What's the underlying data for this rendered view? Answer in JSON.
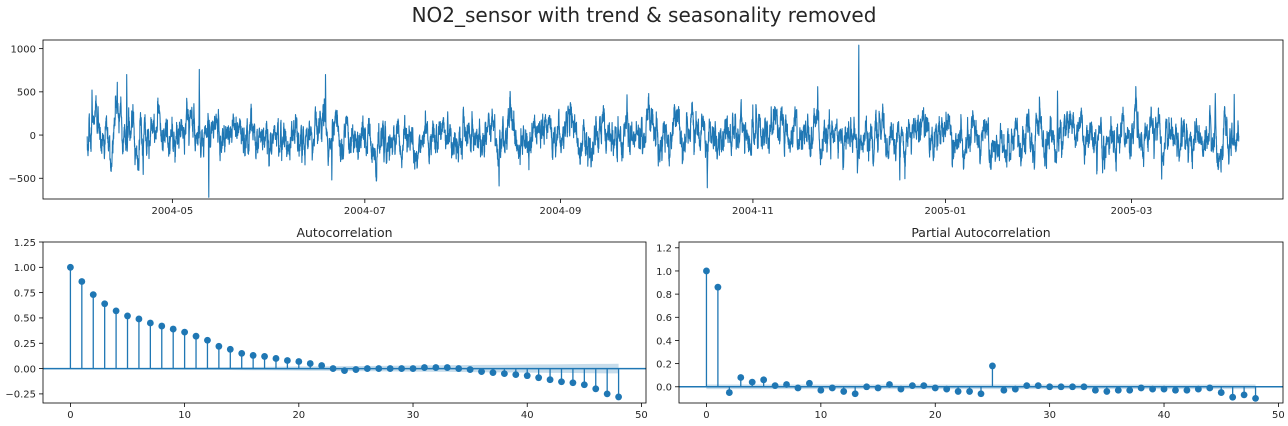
{
  "figure": {
    "suptitle": "NO2_sensor with trend & seasonality removed",
    "line_color": "#1f77b4",
    "conf_band_color": "#1f77b4"
  },
  "chart_data": [
    {
      "type": "line",
      "title": "",
      "xlabel": "",
      "ylabel": "",
      "x_range": [
        "2004-04-04",
        "2005-04-04"
      ],
      "xlim": [
        "2004-03-21",
        "2005-04-18"
      ],
      "ylim": [
        -740,
        1100
      ],
      "xticks": [
        {
          "date": "2004-05-01",
          "label": "2004-05"
        },
        {
          "date": "2004-07-01",
          "label": "2004-07"
        },
        {
          "date": "2004-09-01",
          "label": "2004-09"
        },
        {
          "date": "2004-11-01",
          "label": "2004-11"
        },
        {
          "date": "2005-01-01",
          "label": "2005-01"
        },
        {
          "date": "2005-03-01",
          "label": "2005-03"
        }
      ],
      "yticks": [
        -500,
        0,
        500,
        1000
      ],
      "ytick_labels": [
        "−500",
        "0",
        "500",
        "1000"
      ],
      "noise_sd": 145,
      "spikes": [
        {
          "date": "2004-04-05",
          "value": 520
        },
        {
          "date": "2004-04-13",
          "value": 610
        },
        {
          "date": "2004-04-16",
          "value": 700
        },
        {
          "date": "2004-05-09",
          "value": 760
        },
        {
          "date": "2004-05-12",
          "value": -720
        },
        {
          "date": "2004-06-18",
          "value": 700
        },
        {
          "date": "2004-06-20",
          "value": -520
        },
        {
          "date": "2004-08-12",
          "value": -590
        },
        {
          "date": "2004-10-17",
          "value": -610
        },
        {
          "date": "2004-11-21",
          "value": 560
        },
        {
          "date": "2004-12-04",
          "value": 1040
        },
        {
          "date": "2004-12-17",
          "value": -520
        },
        {
          "date": "2005-02-05",
          "value": 510
        },
        {
          "date": "2005-03-10",
          "value": -510
        },
        {
          "date": "2005-03-27",
          "value": 480
        },
        {
          "date": "2005-04-02",
          "value": 470
        }
      ],
      "grid": false
    },
    {
      "type": "stem",
      "title": "Autocorrelation",
      "xlabel": "",
      "ylabel": "",
      "xlim": [
        -2.4,
        50.4
      ],
      "ylim": [
        -0.34,
        1.25
      ],
      "xticks": [
        0,
        10,
        20,
        30,
        40,
        50
      ],
      "xtick_labels": [
        "0",
        "10",
        "20",
        "30",
        "40",
        "50"
      ],
      "yticks": [
        -0.25,
        0.0,
        0.25,
        0.5,
        0.75,
        1.0,
        1.25
      ],
      "ytick_labels": [
        "−0.25",
        "0.00",
        "0.25",
        "0.50",
        "0.75",
        "1.00",
        "1.25"
      ],
      "lags": [
        0,
        1,
        2,
        3,
        4,
        5,
        6,
        7,
        8,
        9,
        10,
        11,
        12,
        13,
        14,
        15,
        16,
        17,
        18,
        19,
        20,
        21,
        22,
        23,
        24,
        25,
        26,
        27,
        28,
        29,
        30,
        31,
        32,
        33,
        34,
        35,
        36,
        37,
        38,
        39,
        40,
        41,
        42,
        43,
        44,
        45,
        46,
        47,
        48
      ],
      "values": [
        1.0,
        0.86,
        0.73,
        0.64,
        0.57,
        0.52,
        0.49,
        0.45,
        0.42,
        0.39,
        0.36,
        0.32,
        0.28,
        0.22,
        0.19,
        0.15,
        0.13,
        0.12,
        0.1,
        0.08,
        0.07,
        0.05,
        0.03,
        0.0,
        -0.02,
        -0.01,
        0.0,
        0.0,
        0.0,
        0.0,
        0.0,
        0.01,
        0.01,
        0.01,
        0.0,
        -0.01,
        -0.03,
        -0.04,
        -0.05,
        -0.06,
        -0.07,
        -0.09,
        -0.11,
        -0.13,
        -0.14,
        -0.16,
        -0.2,
        -0.25,
        -0.28
      ],
      "conf_band": [
        0.0,
        0.001,
        0.002,
        0.003,
        0.004,
        0.005,
        0.006,
        0.007,
        0.008,
        0.009,
        0.01,
        0.011,
        0.012,
        0.013,
        0.014,
        0.015,
        0.016,
        0.017,
        0.018,
        0.019,
        0.02,
        0.021,
        0.022,
        0.023,
        0.024,
        0.025,
        0.026,
        0.027,
        0.028,
        0.029,
        0.03,
        0.031,
        0.032,
        0.033,
        0.034,
        0.035,
        0.036,
        0.037,
        0.038,
        0.039,
        0.04,
        0.041,
        0.042,
        0.043,
        0.044,
        0.045,
        0.046,
        0.047,
        0.048
      ],
      "grid": false
    },
    {
      "type": "stem",
      "title": "Partial Autocorrelation",
      "xlabel": "",
      "ylabel": "",
      "xlim": [
        -2.4,
        50.4
      ],
      "ylim": [
        -0.14,
        1.25
      ],
      "xticks": [
        0,
        10,
        20,
        30,
        40,
        50
      ],
      "xtick_labels": [
        "0",
        "10",
        "20",
        "30",
        "40",
        "50"
      ],
      "yticks": [
        0.0,
        0.2,
        0.4,
        0.6,
        0.8,
        1.0,
        1.2
      ],
      "ytick_labels": [
        "0.0",
        "0.2",
        "0.4",
        "0.6",
        "0.8",
        "1.0",
        "1.2"
      ],
      "lags": [
        0,
        1,
        2,
        3,
        4,
        5,
        6,
        7,
        8,
        9,
        10,
        11,
        12,
        13,
        14,
        15,
        16,
        17,
        18,
        19,
        20,
        21,
        22,
        23,
        24,
        25,
        26,
        27,
        28,
        29,
        30,
        31,
        32,
        33,
        34,
        35,
        36,
        37,
        38,
        39,
        40,
        41,
        42,
        43,
        44,
        45,
        46,
        47,
        48
      ],
      "values": [
        1.0,
        0.86,
        -0.05,
        0.08,
        0.04,
        0.06,
        0.01,
        0.02,
        -0.01,
        0.03,
        -0.03,
        -0.01,
        -0.04,
        -0.06,
        0.0,
        -0.01,
        0.02,
        -0.02,
        0.01,
        0.01,
        -0.01,
        -0.02,
        -0.04,
        -0.04,
        -0.06,
        0.18,
        -0.03,
        -0.02,
        0.01,
        0.01,
        0.0,
        0.0,
        0.0,
        0.0,
        -0.03,
        -0.04,
        -0.03,
        -0.03,
        -0.01,
        -0.02,
        -0.02,
        -0.03,
        -0.03,
        -0.02,
        -0.01,
        -0.05,
        -0.09,
        -0.07,
        -0.1
      ],
      "conf_band": [
        0.02,
        0.02,
        0.02,
        0.02,
        0.02,
        0.02,
        0.02,
        0.02,
        0.02,
        0.02,
        0.02,
        0.02,
        0.02,
        0.02,
        0.02,
        0.02,
        0.02,
        0.02,
        0.02,
        0.02,
        0.02,
        0.02,
        0.02,
        0.02,
        0.02,
        0.02,
        0.02,
        0.02,
        0.02,
        0.02,
        0.02,
        0.02,
        0.02,
        0.02,
        0.02,
        0.02,
        0.02,
        0.02,
        0.02,
        0.02,
        0.02,
        0.02,
        0.02,
        0.02,
        0.02,
        0.02,
        0.02,
        0.02,
        0.02
      ],
      "grid": false
    }
  ]
}
